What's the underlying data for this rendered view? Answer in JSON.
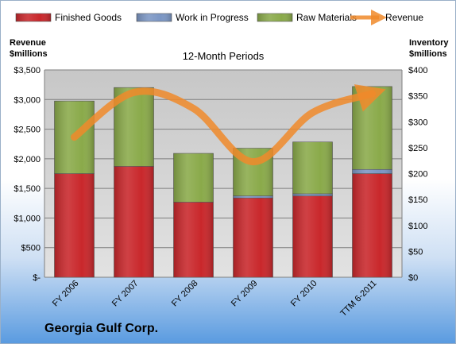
{
  "chart_data": {
    "type": "bar",
    "stacked": true,
    "subtitle": "12-Month Periods",
    "company": "Georgia Gulf Corp.",
    "left_axis_label": [
      "Revenue",
      "$millions"
    ],
    "right_axis_label": [
      "Inventory",
      "$millions"
    ],
    "categories": [
      "FY 2006",
      "FY 2007",
      "FY 2008",
      "FY 2009",
      "FY 2010",
      "TTM 6-2011"
    ],
    "inventory_series": [
      {
        "name": "Finished Goods",
        "color": "#c9272b",
        "values": [
          200,
          214,
          145,
          153,
          157,
          200
        ]
      },
      {
        "name": "Work in Progress",
        "color": "#7b96c4",
        "values": [
          0,
          0,
          0,
          4,
          4,
          8
        ]
      },
      {
        "name": "Raw Materials",
        "color": "#8aaa4a",
        "values": [
          140,
          152,
          94,
          92,
          100,
          160
        ]
      }
    ],
    "revenue_series": {
      "name": "Revenue",
      "color": "#f08a2a",
      "values": [
        2365,
        3120,
        2850,
        1950,
        2780,
        3100
      ]
    },
    "left_axis": {
      "min": 0,
      "max": 3500,
      "ticks": [
        "$-",
        "$500",
        "$1,000",
        "$1,500",
        "$2,000",
        "$2,500",
        "$3,000",
        "$3,500"
      ]
    },
    "right_axis": {
      "min": 0,
      "max": 400,
      "ticks": [
        "$0",
        "$50",
        "$100",
        "$150",
        "$200",
        "$250",
        "$300",
        "$350",
        "$400"
      ]
    },
    "legend_position": "top",
    "grid": true
  }
}
